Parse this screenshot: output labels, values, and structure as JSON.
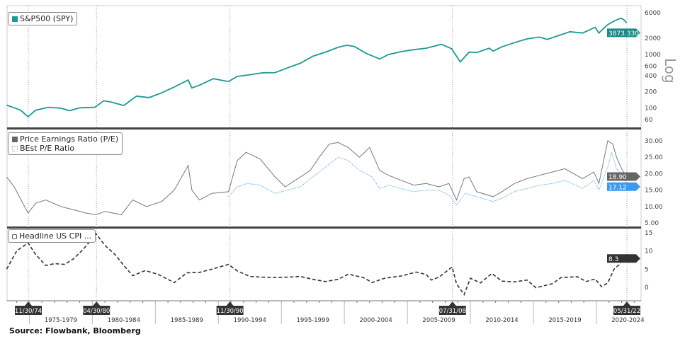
{
  "chart_data": [
    {
      "type": "line",
      "scale": "log",
      "legend": [
        "S&P500 (SPY)"
      ],
      "legend_position": "top-left",
      "color": "#1a9a96",
      "yticks": [
        6000,
        2000,
        1000,
        600,
        400,
        200,
        100,
        60
      ],
      "axis_note": "Log",
      "last_value": "3873.330",
      "series": [
        {
          "name": "S&P500 (SPY)",
          "points": [
            [
              1973.2,
              112
            ],
            [
              1973.8,
              100
            ],
            [
              1974.3,
              90
            ],
            [
              1974.9,
              68
            ],
            [
              1975.5,
              90
            ],
            [
              1976.5,
              102
            ],
            [
              1977.5,
              98
            ],
            [
              1978.2,
              88
            ],
            [
              1979,
              100
            ],
            [
              1980.2,
              102
            ],
            [
              1980.9,
              135
            ],
            [
              1981.5,
              128
            ],
            [
              1982.5,
              110
            ],
            [
              1983.5,
              165
            ],
            [
              1984.5,
              155
            ],
            [
              1985.5,
              190
            ],
            [
              1986.5,
              245
            ],
            [
              1987.6,
              330
            ],
            [
              1987.9,
              235
            ],
            [
              1988.5,
              265
            ],
            [
              1989.6,
              350
            ],
            [
              1990.8,
              310
            ],
            [
              1991.5,
              385
            ],
            [
              1992.5,
              415
            ],
            [
              1993.5,
              450
            ],
            [
              1994.5,
              455
            ],
            [
              1995.5,
              560
            ],
            [
              1996.5,
              680
            ],
            [
              1997.5,
              920
            ],
            [
              1998.5,
              1100
            ],
            [
              1999.5,
              1350
            ],
            [
              2000.2,
              1480
            ],
            [
              2000.8,
              1400
            ],
            [
              2001.7,
              1050
            ],
            [
              2002.8,
              820
            ],
            [
              2003.5,
              990
            ],
            [
              2004.5,
              1120
            ],
            [
              2005.5,
              1220
            ],
            [
              2006.5,
              1300
            ],
            [
              2007.7,
              1540
            ],
            [
              2008.5,
              1280
            ],
            [
              2009.2,
              720
            ],
            [
              2009.9,
              1100
            ],
            [
              2010.5,
              1080
            ],
            [
              2011.5,
              1300
            ],
            [
              2011.8,
              1150
            ],
            [
              2012.5,
              1380
            ],
            [
              2013.5,
              1650
            ],
            [
              2014.5,
              1950
            ],
            [
              2015.5,
              2100
            ],
            [
              2016.1,
              1900
            ],
            [
              2016.9,
              2200
            ],
            [
              2017.9,
              2650
            ],
            [
              2018.9,
              2500
            ],
            [
              2019.9,
              3200
            ],
            [
              2020.2,
              2500
            ],
            [
              2020.9,
              3600
            ],
            [
              2021.5,
              4300
            ],
            [
              2021.95,
              4750
            ],
            [
              2022.2,
              4400
            ],
            [
              2022.4,
              3873
            ]
          ]
        }
      ]
    },
    {
      "type": "line",
      "legend": [
        "Price Earnings Ratio (P/E)",
        "BEst P/E Ratio"
      ],
      "legend_position": "top-left",
      "yticks": [
        30,
        25,
        20,
        15,
        10,
        5
      ],
      "last_values": [
        "18.90",
        "17.12"
      ],
      "series": [
        {
          "name": "Price Earnings Ratio (P/E)",
          "color": "#777777",
          "points": [
            [
              1973.2,
              19
            ],
            [
              1973.8,
              16
            ],
            [
              1974.9,
              8
            ],
            [
              1975.5,
              11
            ],
            [
              1976.3,
              12
            ],
            [
              1977.5,
              10
            ],
            [
              1978.5,
              9
            ],
            [
              1979.5,
              8
            ],
            [
              1980.3,
              7.5
            ],
            [
              1981,
              8.5
            ],
            [
              1982.3,
              7.5
            ],
            [
              1983.2,
              12
            ],
            [
              1984.3,
              10
            ],
            [
              1985.5,
              11.5
            ],
            [
              1986.5,
              15
            ],
            [
              1987.6,
              22.5
            ],
            [
              1987.9,
              15
            ],
            [
              1988.5,
              12
            ],
            [
              1989.5,
              14
            ],
            [
              1990.8,
              14.5
            ],
            [
              1991.5,
              24
            ],
            [
              1992.2,
              26.5
            ],
            [
              1993.3,
              24.5
            ],
            [
              1994.5,
              19
            ],
            [
              1995.3,
              16
            ],
            [
              1996.3,
              18.5
            ],
            [
              1997.3,
              21
            ],
            [
              1998,
              25
            ],
            [
              1998.8,
              29
            ],
            [
              1999.5,
              29.5
            ],
            [
              2000.3,
              28
            ],
            [
              2001.2,
              25
            ],
            [
              2002,
              28
            ],
            [
              2002.8,
              21
            ],
            [
              2003.5,
              19.5
            ],
            [
              2004.5,
              18
            ],
            [
              2005.5,
              16.5
            ],
            [
              2006.5,
              17
            ],
            [
              2007.5,
              16
            ],
            [
              2008.3,
              17
            ],
            [
              2008.9,
              12
            ],
            [
              2009.5,
              18.5
            ],
            [
              2009.9,
              19
            ],
            [
              2010.5,
              14.5
            ],
            [
              2011.8,
              13
            ],
            [
              2012.5,
              14.5
            ],
            [
              2013.5,
              17
            ],
            [
              2014.5,
              18.5
            ],
            [
              2015.5,
              19.5
            ],
            [
              2016.5,
              20.5
            ],
            [
              2017.5,
              21.5
            ],
            [
              2018.9,
              18.5
            ],
            [
              2019.8,
              20.5
            ],
            [
              2020.2,
              17
            ],
            [
              2020.9,
              30
            ],
            [
              2021.3,
              29
            ],
            [
              2021.6,
              25
            ],
            [
              2022,
              21.5
            ],
            [
              2022.4,
              18.9
            ]
          ]
        },
        {
          "name": "BEst P/E Ratio",
          "color": "#6fb7f0",
          "points": [
            [
              1990.8,
              13
            ],
            [
              1991.5,
              16
            ],
            [
              1992.3,
              17
            ],
            [
              1993.3,
              16.5
            ],
            [
              1994.5,
              14
            ],
            [
              1995.5,
              15
            ],
            [
              1996.5,
              16
            ],
            [
              1997.5,
              19
            ],
            [
              1998.5,
              22
            ],
            [
              1999.5,
              25
            ],
            [
              2000.3,
              24
            ],
            [
              2001.2,
              21
            ],
            [
              2002.2,
              19
            ],
            [
              2002.8,
              15.5
            ],
            [
              2003.5,
              16.5
            ],
            [
              2004.5,
              15.5
            ],
            [
              2005.5,
              14.5
            ],
            [
              2006.5,
              15
            ],
            [
              2007.5,
              15
            ],
            [
              2008.3,
              13.5
            ],
            [
              2008.9,
              10.5
            ],
            [
              2009.6,
              14
            ],
            [
              2010.5,
              13
            ],
            [
              2011.8,
              11.5
            ],
            [
              2012.5,
              12.5
            ],
            [
              2013.5,
              14.5
            ],
            [
              2014.5,
              15.5
            ],
            [
              2015.5,
              16.5
            ],
            [
              2016.5,
              17
            ],
            [
              2017.5,
              18
            ],
            [
              2018.9,
              15.5
            ],
            [
              2019.8,
              18
            ],
            [
              2020.2,
              15
            ],
            [
              2020.9,
              22
            ],
            [
              2021.2,
              26.5
            ],
            [
              2021.6,
              21.5
            ],
            [
              2022,
              20
            ],
            [
              2022.4,
              17.12
            ]
          ]
        }
      ]
    },
    {
      "type": "line",
      "legend": [
        "Headline US CPI ..."
      ],
      "legend_position": "top-left",
      "color": "#333333",
      "yticks": [
        15,
        10,
        5,
        0
      ],
      "last_value": "8.3",
      "series": [
        {
          "name": "Headline US CPI ...",
          "points": [
            [
              1973.2,
              5
            ],
            [
              1974,
              10
            ],
            [
              1974.9,
              12.2
            ],
            [
              1975.5,
              9
            ],
            [
              1976.3,
              6
            ],
            [
              1977,
              6.5
            ],
            [
              1977.8,
              6.3
            ],
            [
              1978.5,
              7.8
            ],
            [
              1979.3,
              10.5
            ],
            [
              1980.3,
              14.7
            ],
            [
              1981,
              11.5
            ],
            [
              1981.8,
              9
            ],
            [
              1982.5,
              6
            ],
            [
              1983.2,
              3.2
            ],
            [
              1984.2,
              4.6
            ],
            [
              1985.2,
              3.6
            ],
            [
              1986.5,
              1.3
            ],
            [
              1987.5,
              4
            ],
            [
              1988.5,
              4.1
            ],
            [
              1989.5,
              5
            ],
            [
              1990.8,
              6.3
            ],
            [
              1991.5,
              4.5
            ],
            [
              1992.5,
              3
            ],
            [
              1993.5,
              2.8
            ],
            [
              1994.5,
              2.7
            ],
            [
              1995.5,
              2.8
            ],
            [
              1996.5,
              3
            ],
            [
              1997.5,
              2.2
            ],
            [
              1998.5,
              1.6
            ],
            [
              1999.5,
              2.2
            ],
            [
              2000.3,
              3.6
            ],
            [
              2001.5,
              2.7
            ],
            [
              2002.2,
              1.3
            ],
            [
              2003.2,
              2.5
            ],
            [
              2004.5,
              3.1
            ],
            [
              2005.7,
              4.2
            ],
            [
              2006.5,
              3.5
            ],
            [
              2006.9,
              2
            ],
            [
              2007.5,
              2.8
            ],
            [
              2008.55,
              5.6
            ],
            [
              2008.9,
              1
            ],
            [
              2009.5,
              -2
            ],
            [
              2010,
              2.5
            ],
            [
              2010.8,
              1.2
            ],
            [
              2011.7,
              3.8
            ],
            [
              2012.5,
              1.7
            ],
            [
              2013.5,
              1.5
            ],
            [
              2014.5,
              2
            ],
            [
              2015.2,
              -0.1
            ],
            [
              2016.5,
              1
            ],
            [
              2017.2,
              2.7
            ],
            [
              2018.5,
              2.9
            ],
            [
              2019.2,
              1.6
            ],
            [
              2019.9,
              2.3
            ],
            [
              2020.4,
              0.2
            ],
            [
              2020.9,
              1.2
            ],
            [
              2021.4,
              5
            ],
            [
              2021.8,
              6.2
            ],
            [
              2022.2,
              8.5
            ],
            [
              2022.4,
              8.6
            ],
            [
              2022.6,
              8.3
            ]
          ]
        }
      ]
    }
  ],
  "x_axis": {
    "labels": [
      "1975-1979",
      "1980-1984",
      "1985-1989",
      "1990-1994",
      "1995-1999",
      "2000-2004",
      "2005-2009",
      "2010-2014",
      "2015-2019",
      "2020-2024"
    ],
    "markers": [
      "11/30/74",
      "04/30/80",
      "11/30/90",
      "07/31/08",
      "05/31/22"
    ]
  },
  "source": "Source:  Flowbank, Bloomberg"
}
